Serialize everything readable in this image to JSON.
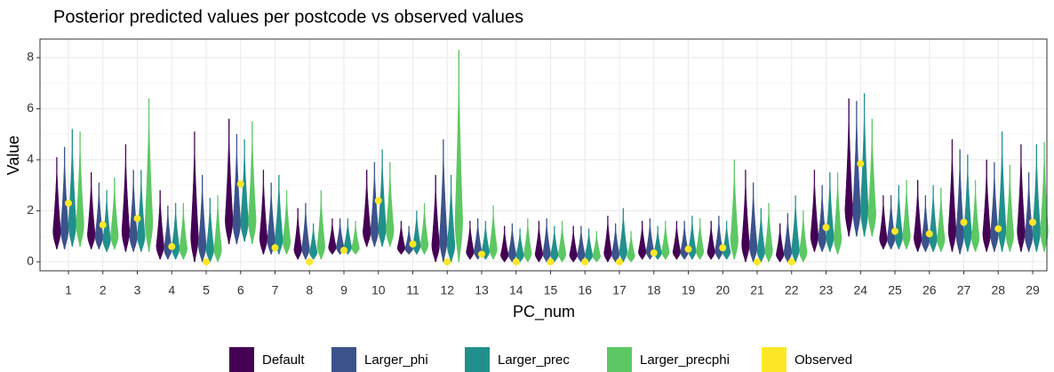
{
  "chart_data": {
    "type": "violin",
    "title": "Posterior predicted values per postcode vs observed values",
    "x_label": "PC_num",
    "y_label": "Value",
    "categories": [
      "1",
      "2",
      "3",
      "4",
      "5",
      "6",
      "7",
      "8",
      "9",
      "10",
      "11",
      "12",
      "13",
      "14",
      "15",
      "16",
      "17",
      "18",
      "19",
      "20",
      "21",
      "22",
      "23",
      "24",
      "25",
      "26",
      "27",
      "28",
      "29"
    ],
    "ylim": [
      -0.35,
      8.73
    ],
    "yticks": [
      0,
      2,
      4,
      6,
      8
    ],
    "grid": true,
    "legend": "bottom",
    "series": [
      {
        "name": "Default",
        "color": "#440154",
        "low": [
          0.5,
          0.5,
          0.4,
          0.1,
          0,
          0.7,
          0.3,
          0.1,
          0.3,
          0.6,
          0.3,
          0,
          0.1,
          0,
          0,
          0,
          0,
          0.1,
          0.1,
          0.1,
          0,
          0,
          0.4,
          1.0,
          0.5,
          0.4,
          0.4,
          0.4,
          0.4
        ],
        "high": [
          4.1,
          3.5,
          4.6,
          2.8,
          5.1,
          5.6,
          3.6,
          2.1,
          1.7,
          3.6,
          1.6,
          3.4,
          1.6,
          1.4,
          1.6,
          1.4,
          1.8,
          1.6,
          1.6,
          1.6,
          3.6,
          1.5,
          3.6,
          6.4,
          2.6,
          3.2,
          4.8,
          4.0,
          4.6
        ]
      },
      {
        "name": "Larger_phi",
        "color": "#3b528b",
        "low": [
          0.5,
          0.5,
          0.4,
          0.1,
          0,
          0.7,
          0.3,
          0.1,
          0.3,
          0.6,
          0.3,
          0,
          0.1,
          0,
          0,
          0,
          0,
          0.1,
          0.1,
          0.1,
          0,
          0,
          0.4,
          1.0,
          0.5,
          0.4,
          0.3,
          0.4,
          0.4
        ],
        "high": [
          4.5,
          3.1,
          3.6,
          2.2,
          3.4,
          5.0,
          3.1,
          2.3,
          1.7,
          3.9,
          1.4,
          4.8,
          1.7,
          1.5,
          1.7,
          1.4,
          1.5,
          1.7,
          1.6,
          1.8,
          3.1,
          1.9,
          3.0,
          6.3,
          2.6,
          2.6,
          4.4,
          3.9,
          3.5
        ]
      },
      {
        "name": "Larger_prec",
        "color": "#21908c",
        "low": [
          0.6,
          0.4,
          0.4,
          0.1,
          0,
          0.8,
          0.3,
          0.1,
          0.3,
          0.6,
          0.3,
          0,
          0.1,
          0,
          0,
          0,
          0,
          0.1,
          0.1,
          0.1,
          0,
          0,
          0.4,
          1.0,
          0.5,
          0.4,
          0.4,
          0.4,
          0.4
        ],
        "high": [
          5.2,
          2.8,
          3.6,
          2.3,
          2.5,
          4.8,
          3.4,
          1.5,
          1.7,
          4.4,
          2.0,
          3.4,
          1.6,
          1.3,
          1.4,
          1.3,
          2.1,
          1.4,
          1.8,
          1.6,
          2.1,
          2.6,
          3.5,
          6.6,
          3.0,
          3.0,
          4.2,
          5.1,
          4.6
        ]
      },
      {
        "name": "Larger_precphi",
        "color": "#5dc863",
        "low": [
          0.6,
          0.5,
          0.4,
          0.1,
          0,
          0.7,
          0.3,
          0.1,
          0.3,
          0.6,
          0.3,
          0,
          0.1,
          0,
          0,
          0,
          0,
          0.1,
          0.1,
          0.1,
          0,
          0,
          0.3,
          1.0,
          0.5,
          0.4,
          0.4,
          0.4,
          0.4
        ],
        "high": [
          5.1,
          3.3,
          6.4,
          2.3,
          2.6,
          5.5,
          2.8,
          2.8,
          1.6,
          3.9,
          2.3,
          8.3,
          2.2,
          1.7,
          1.6,
          1.2,
          1.2,
          1.6,
          1.7,
          4.0,
          2.3,
          2.0,
          3.5,
          5.6,
          3.2,
          2.9,
          3.2,
          3.8,
          4.7
        ]
      },
      {
        "name": "Observed",
        "color": "#fde725",
        "values": [
          2.3,
          1.45,
          1.7,
          0.6,
          0,
          3.05,
          0.55,
          0,
          0.45,
          2.4,
          0.7,
          0,
          0.3,
          0,
          0,
          0,
          0,
          0.35,
          0.5,
          0.55,
          0,
          0,
          1.35,
          3.85,
          1.2,
          1.1,
          1.55,
          1.3,
          1.55
        ]
      }
    ]
  }
}
